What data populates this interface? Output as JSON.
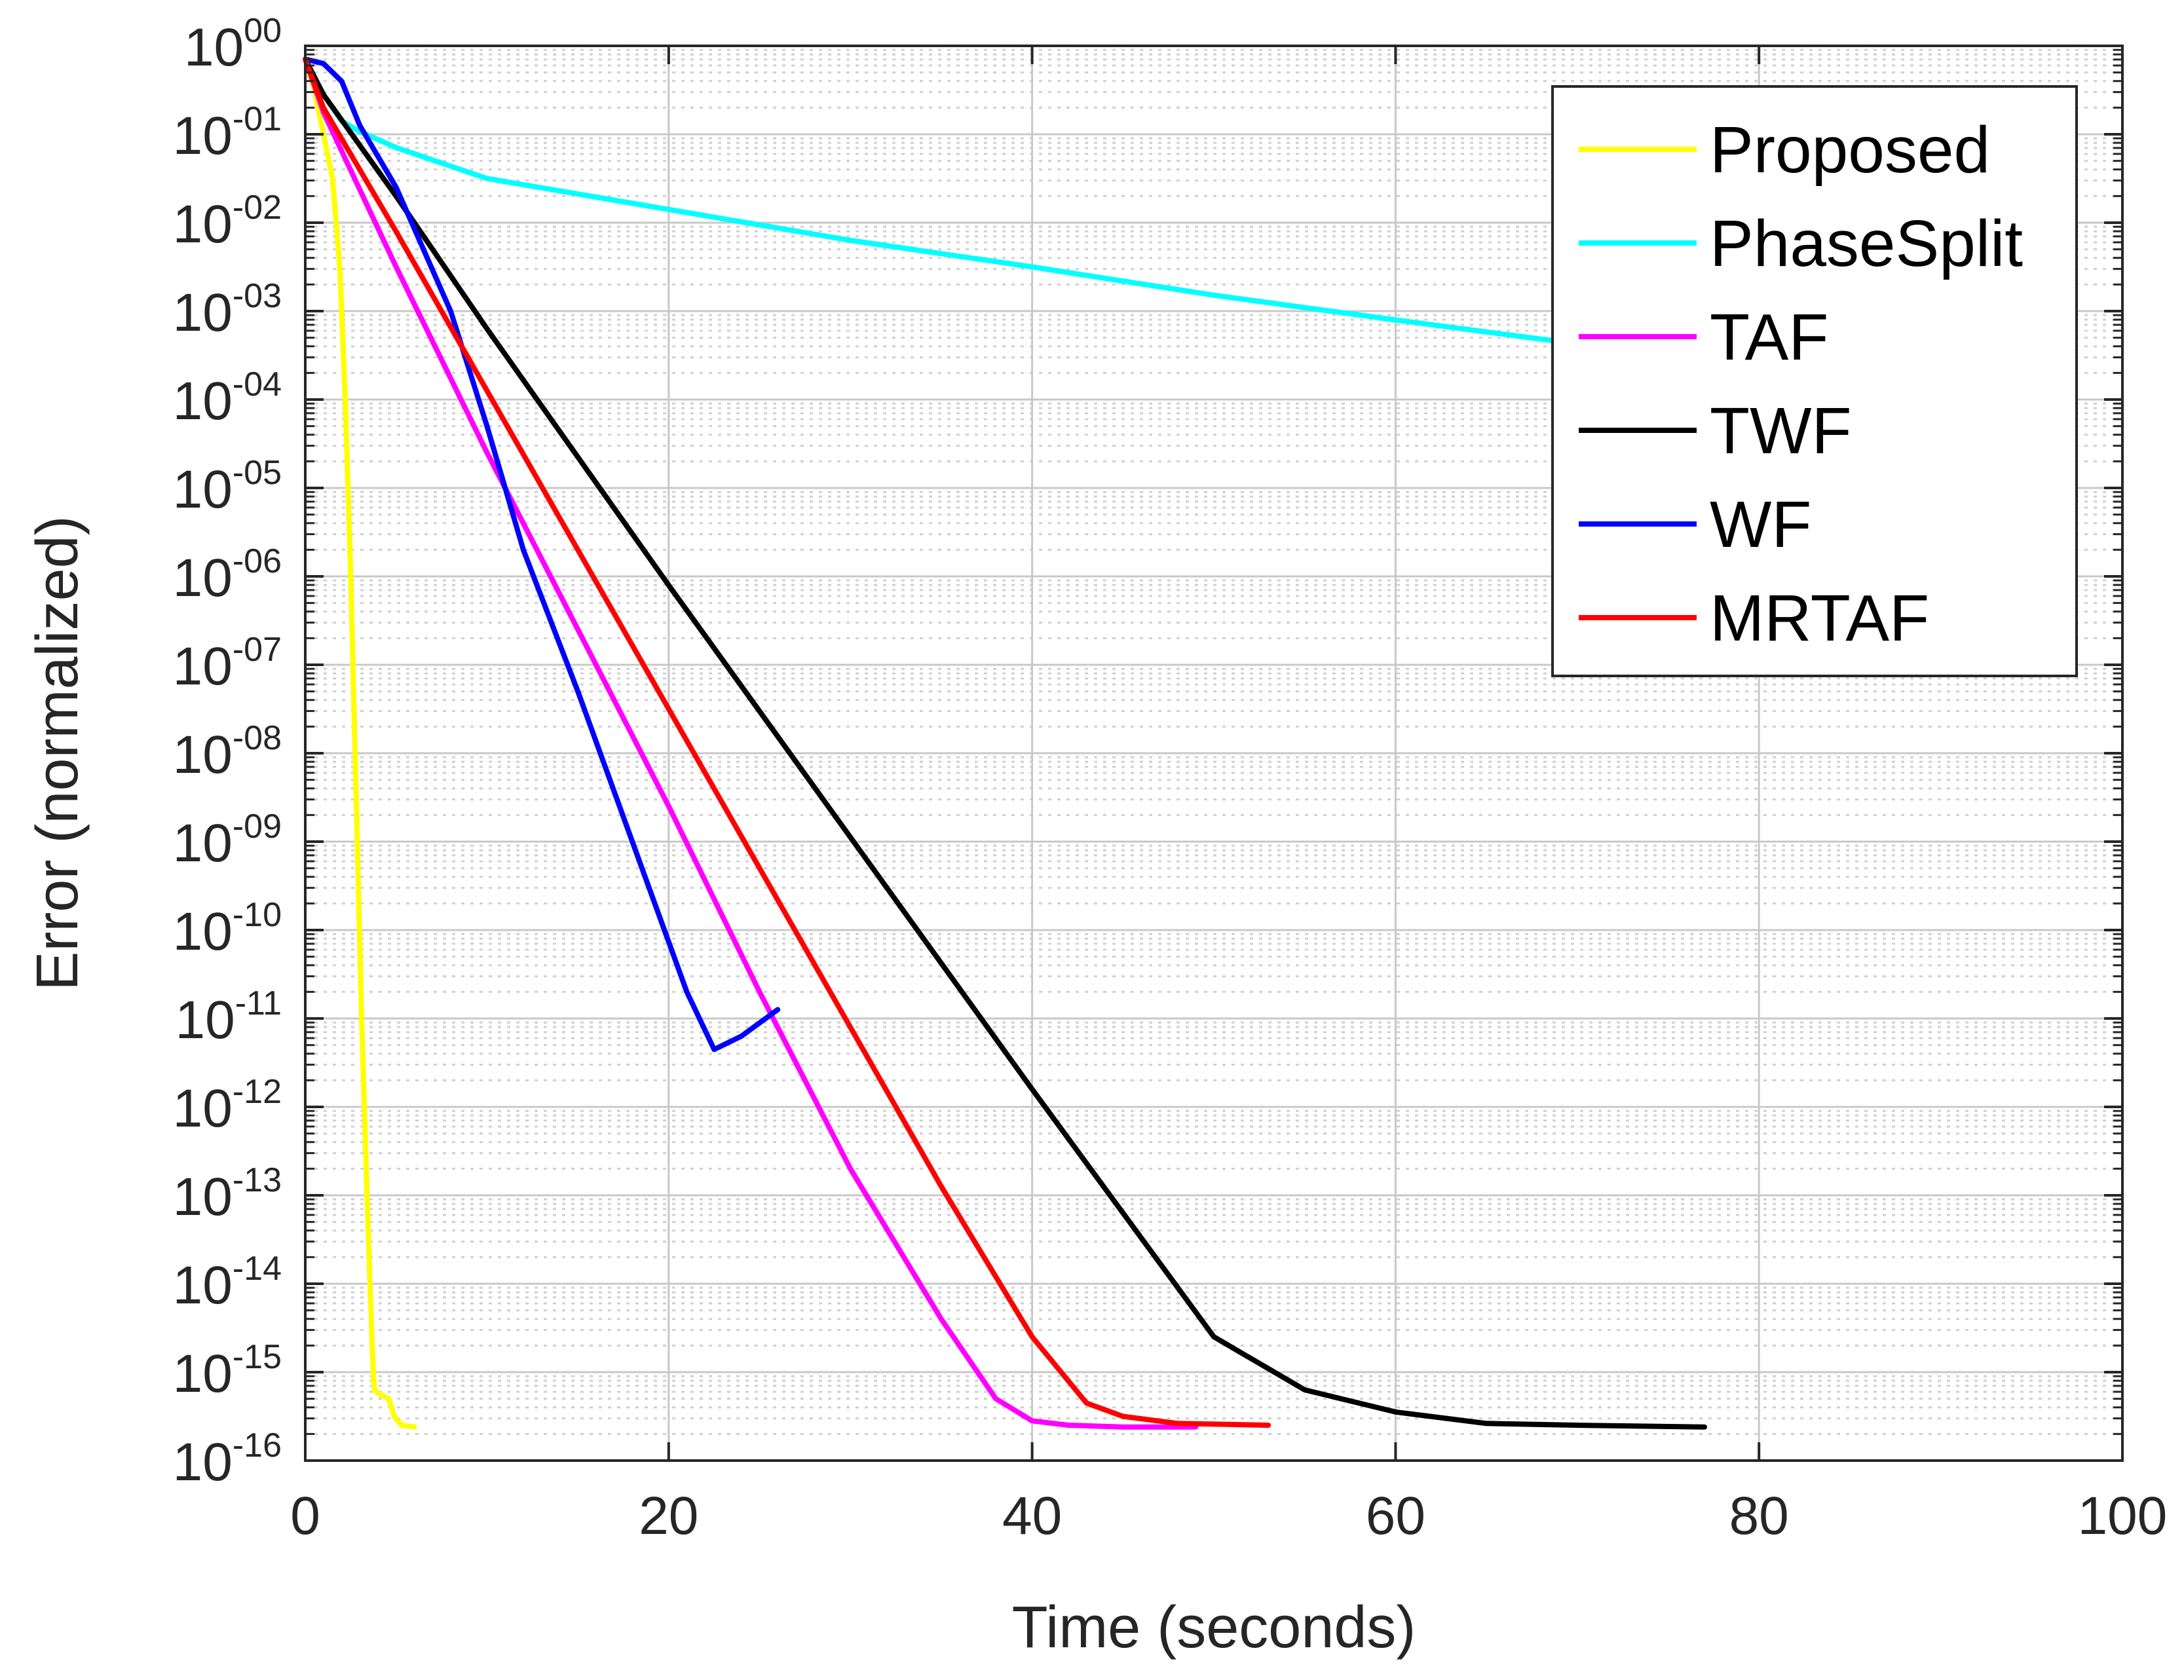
{
  "chart_data": {
    "type": "line",
    "title": "",
    "xlabel": "Time (seconds)",
    "ylabel": "Error (normalized)",
    "xscale": "linear",
    "yscale": "log",
    "xlim": [
      0,
      100
    ],
    "ylim_exp": [
      -16,
      0
    ],
    "x_ticks": [
      0,
      20,
      40,
      60,
      80,
      100
    ],
    "x_tick_labels": [
      "0",
      "20",
      "40",
      "60",
      "80",
      "100"
    ],
    "y_ticks": [
      {
        "base": "10",
        "exp": "00"
      },
      {
        "base": "10",
        "exp": "-01"
      },
      {
        "base": "10",
        "exp": "-02"
      },
      {
        "base": "10",
        "exp": "-03"
      },
      {
        "base": "10",
        "exp": "-04"
      },
      {
        "base": "10",
        "exp": "-05"
      },
      {
        "base": "10",
        "exp": "-06"
      },
      {
        "base": "10",
        "exp": "-07"
      },
      {
        "base": "10",
        "exp": "-08"
      },
      {
        "base": "10",
        "exp": "-09"
      },
      {
        "base": "10",
        "exp": "-10"
      },
      {
        "base": "10",
        "exp": "-11"
      },
      {
        "base": "10",
        "exp": "-12"
      },
      {
        "base": "10",
        "exp": "-13"
      },
      {
        "base": "10",
        "exp": "-14"
      },
      {
        "base": "10",
        "exp": "-15"
      },
      {
        "base": "10",
        "exp": "-16"
      }
    ],
    "grid": true,
    "legend_position": "top-right",
    "series": [
      {
        "name": "Proposed",
        "color": "#ffff00",
        "points": [
          [
            0,
            -0.15
          ],
          [
            0.5,
            -0.5
          ],
          [
            1,
            -1
          ],
          [
            1.5,
            -1.5
          ],
          [
            1.9,
            -2.5
          ],
          [
            2.2,
            -4
          ],
          [
            2.5,
            -6
          ],
          [
            2.8,
            -8.5
          ],
          [
            3.1,
            -11
          ],
          [
            3.4,
            -13
          ],
          [
            3.7,
            -14.8
          ],
          [
            3.8,
            -15.2
          ],
          [
            4.1,
            -15.25
          ],
          [
            4.6,
            -15.3
          ],
          [
            4.9,
            -15.5
          ],
          [
            5.3,
            -15.6
          ],
          [
            6,
            -15.62
          ]
        ]
      },
      {
        "name": "PhaseSplit",
        "color": "#00ffff",
        "points": [
          [
            0,
            -0.15
          ],
          [
            1,
            -0.55
          ],
          [
            2,
            -0.85
          ],
          [
            3,
            -0.97
          ],
          [
            5,
            -1.15
          ],
          [
            10,
            -1.5
          ],
          [
            20,
            -1.85
          ],
          [
            30,
            -2.2
          ],
          [
            40,
            -2.5
          ],
          [
            50,
            -2.82
          ],
          [
            60,
            -3.1
          ],
          [
            70,
            -3.37
          ]
        ]
      },
      {
        "name": "TAF",
        "color": "#ff00ff",
        "points": [
          [
            0,
            -0.15
          ],
          [
            1,
            -0.75
          ],
          [
            5,
            -2.5
          ],
          [
            10,
            -4.6
          ],
          [
            15,
            -6.6
          ],
          [
            20,
            -8.6
          ],
          [
            25,
            -10.7
          ],
          [
            30,
            -12.7
          ],
          [
            35,
            -14.4
          ],
          [
            38,
            -15.3
          ],
          [
            40,
            -15.55
          ],
          [
            42,
            -15.6
          ],
          [
            45,
            -15.62
          ],
          [
            49,
            -15.62
          ]
        ]
      },
      {
        "name": "TWF",
        "color": "#000000",
        "points": [
          [
            0,
            -0.15
          ],
          [
            1,
            -0.55
          ],
          [
            5,
            -1.7
          ],
          [
            10,
            -3.2
          ],
          [
            15,
            -4.65
          ],
          [
            20,
            -6.1
          ],
          [
            30,
            -8.95
          ],
          [
            40,
            -11.8
          ],
          [
            50,
            -14.6
          ],
          [
            55,
            -15.2
          ],
          [
            60,
            -15.45
          ],
          [
            65,
            -15.58
          ],
          [
            70,
            -15.6
          ],
          [
            77,
            -15.62
          ]
        ]
      },
      {
        "name": "WF",
        "color": "#0000ff",
        "points": [
          [
            0,
            -0.15
          ],
          [
            1,
            -0.2
          ],
          [
            2,
            -0.4
          ],
          [
            3,
            -0.9
          ],
          [
            5,
            -1.6
          ],
          [
            8,
            -3
          ],
          [
            10,
            -4.3
          ],
          [
            12,
            -5.7
          ],
          [
            15,
            -7.3
          ],
          [
            18,
            -9
          ],
          [
            21,
            -10.7
          ],
          [
            22.5,
            -11.35
          ],
          [
            24,
            -11.2
          ],
          [
            26,
            -10.9
          ]
        ]
      },
      {
        "name": "MRTAF",
        "color": "#ff0000",
        "points": [
          [
            0,
            -0.15
          ],
          [
            1,
            -0.7
          ],
          [
            5,
            -2.1
          ],
          [
            10,
            -3.9
          ],
          [
            15,
            -5.7
          ],
          [
            20,
            -7.5
          ],
          [
            25,
            -9.3
          ],
          [
            30,
            -11.1
          ],
          [
            35,
            -12.9
          ],
          [
            40,
            -14.6
          ],
          [
            43,
            -15.35
          ],
          [
            45,
            -15.5
          ],
          [
            48,
            -15.58
          ],
          [
            53,
            -15.6
          ]
        ]
      }
    ]
  }
}
